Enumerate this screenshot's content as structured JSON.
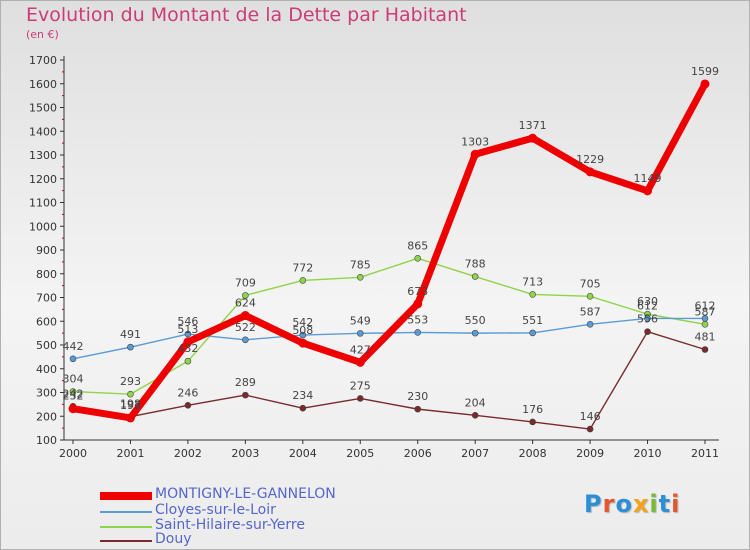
{
  "title": "Evolution du Montant de la Dette par Habitant",
  "unit": "(en €)",
  "logo": {
    "letters": [
      "P",
      "r",
      "o",
      "x",
      "i",
      "t",
      "i"
    ],
    "colors": [
      "#2b8fd6",
      "#e6552b",
      "#2b8fd6",
      "#f2a31b",
      "#7ab835",
      "#2b8fd6",
      "#e6552b"
    ]
  },
  "chart_data": {
    "type": "line",
    "title": "Evolution du Montant de la Dette par Habitant",
    "ylabel": "(en €)",
    "xlabel": "",
    "x": [
      "2000",
      "2001",
      "2002",
      "2003",
      "2004",
      "2005",
      "2006",
      "2007",
      "2008",
      "2009",
      "2010",
      "2011"
    ],
    "ylim": [
      100,
      1700
    ],
    "yticks": [
      100,
      200,
      300,
      400,
      500,
      600,
      700,
      800,
      900,
      1000,
      1100,
      1200,
      1300,
      1400,
      1500,
      1600,
      1700
    ],
    "grid": false,
    "legend_position": "bottom-left",
    "series": [
      {
        "name": "MONTIGNY-LE-GANNELON",
        "color": "#ee0000",
        "values": [
          232,
          193,
          513,
          624,
          508,
          427,
          673,
          1303,
          1371,
          1229,
          1149,
          1599
        ]
      },
      {
        "name": "Cloyes-sur-le-Loir",
        "color": "#5b9bd5",
        "values": [
          442,
          491,
          546,
          522,
          542,
          549,
          553,
          550,
          551,
          587,
          612,
          612
        ]
      },
      {
        "name": "Saint-Hilaire-sur-Yerre",
        "color": "#8fd44a",
        "values": [
          304,
          293,
          432,
          709,
          772,
          785,
          865,
          788,
          713,
          705,
          630,
          587
        ]
      },
      {
        "name": "Douy",
        "color": "#7a2a2a",
        "values": [
          242,
          198,
          246,
          289,
          234,
          275,
          230,
          204,
          176,
          146,
          556,
          481
        ]
      }
    ]
  }
}
